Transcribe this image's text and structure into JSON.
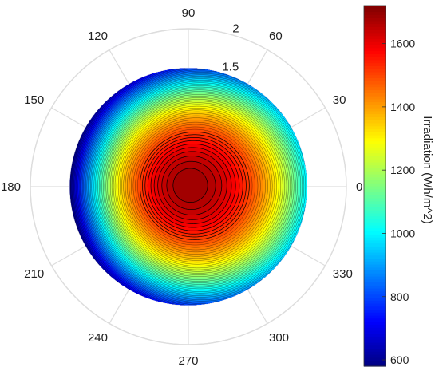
{
  "chart_data": {
    "type": "heatmap",
    "subtype": "polar-contour",
    "polar": {
      "angle_ticks": [
        "0",
        "30",
        "60",
        "90",
        "120",
        "150",
        "180",
        "210",
        "240",
        "270",
        "300",
        "330"
      ],
      "angle_tick_values": [
        0,
        30,
        60,
        90,
        120,
        150,
        180,
        210,
        240,
        270,
        300,
        330
      ],
      "radial_ticks": [
        "1.5",
        "2"
      ],
      "radial_tick_values": [
        1.5,
        2
      ],
      "rlim": [
        0,
        2
      ],
      "data_rmax": 1.5,
      "grid": true
    },
    "field": {
      "peak_value": 1700,
      "peak_theta_deg": 90,
      "peak_r": 0.02,
      "edge_min_value": 590,
      "edge_min_theta_deg": 180,
      "edge_max_value": 1000,
      "edge_max_theta_deg": 0,
      "contour_lines": "black"
    },
    "colorbar": {
      "label": "Irradiation (Wh/m^2)",
      "ticks": [
        "600",
        "800",
        "1000",
        "1200",
        "1400",
        "1600"
      ],
      "tick_values": [
        600,
        800,
        1000,
        1200,
        1400,
        1600
      ],
      "range": [
        580,
        1720
      ],
      "colormap": "jet",
      "position": "right"
    }
  }
}
